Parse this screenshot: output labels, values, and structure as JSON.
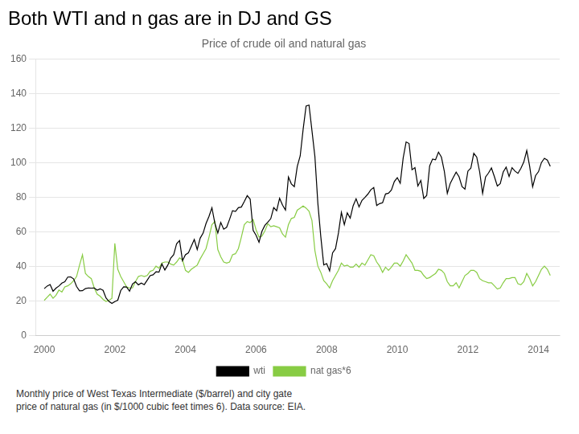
{
  "chart_data": {
    "type": "line",
    "title": "Both WTI and n gas are in DJ and GS",
    "subtitle": "Price of crude oil and natural gas",
    "annotations": [
      "Monthly price of West Texas Intermediate ($/barrel) and city gate\nprice of natural gas (in $/1000 cubic feet times 6).   Data source: EIA."
    ],
    "x": [
      2000,
      2000.083333,
      2000.166667,
      2000.25,
      2000.333333,
      2000.416667,
      2000.5,
      2000.583333,
      2000.666667,
      2000.75,
      2000.833333,
      2000.916667,
      2001,
      2001.083333,
      2001.166667,
      2001.25,
      2001.333333,
      2001.416667,
      2001.5,
      2001.583333,
      2001.666667,
      2001.75,
      2001.833333,
      2001.916667,
      2002,
      2002.083333,
      2002.166667,
      2002.25,
      2002.333333,
      2002.416667,
      2002.5,
      2002.583333,
      2002.666667,
      2002.75,
      2002.833333,
      2002.916667,
      2003,
      2003.083333,
      2003.166667,
      2003.25,
      2003.333333,
      2003.416667,
      2003.5,
      2003.583333,
      2003.666667,
      2003.75,
      2003.833333,
      2003.916667,
      2004,
      2004.083333,
      2004.166667,
      2004.25,
      2004.333333,
      2004.416667,
      2004.5,
      2004.583333,
      2004.666667,
      2004.75,
      2004.833333,
      2004.916667,
      2005,
      2005.083333,
      2005.166667,
      2005.25,
      2005.333333,
      2005.416667,
      2005.5,
      2005.583333,
      2005.666667,
      2005.75,
      2005.833333,
      2005.916667,
      2006,
      2006.083333,
      2006.166667,
      2006.25,
      2006.333333,
      2006.416667,
      2006.5,
      2006.583333,
      2006.666667,
      2006.75,
      2006.833333,
      2006.916667,
      2007,
      2007.083333,
      2007.166667,
      2007.25,
      2007.333333,
      2007.416667,
      2007.5,
      2007.583333,
      2007.666667,
      2007.75,
      2007.833333,
      2007.916667,
      2008,
      2008.083333,
      2008.166667,
      2008.25,
      2008.333333,
      2008.416667,
      2008.5,
      2008.583333,
      2008.666667,
      2008.75,
      2008.833333,
      2008.916667,
      2009,
      2009.083333,
      2009.166667,
      2009.25,
      2009.333333,
      2009.416667,
      2009.5,
      2009.583333,
      2009.666667,
      2009.75,
      2009.833333,
      2009.916667,
      2010,
      2010.083333,
      2010.166667,
      2010.25,
      2010.333333,
      2010.416667,
      2010.5,
      2010.583333,
      2010.666667,
      2010.75,
      2010.833333,
      2010.916667,
      2011,
      2011.083333,
      2011.166667,
      2011.25,
      2011.333333,
      2011.416667,
      2011.5,
      2011.583333,
      2011.666667,
      2011.75,
      2011.833333,
      2011.916667,
      2012,
      2012.083333,
      2012.166667,
      2012.25,
      2012.333333,
      2012.416667,
      2012.5,
      2012.583333,
      2012.666667,
      2012.75,
      2012.833333,
      2012.916667,
      2013,
      2013.083333,
      2013.166667,
      2013.25,
      2013.333333,
      2013.416667,
      2013.5,
      2013.583333,
      2013.666667,
      2013.75,
      2013.833333,
      2013.916667,
      2014,
      2014.083333,
      2014.166667,
      2014.25,
      2014.333333
    ],
    "series": [
      {
        "name": "wti",
        "color": "#000000",
        "values": [
          27.2,
          28.7,
          29.6,
          25.7,
          27.5,
          28.7,
          30.4,
          31.2,
          33.9,
          34.0,
          32.8,
          28.4,
          25.9,
          26.0,
          27.2,
          27.6,
          27.5,
          27.6,
          26.3,
          27.1,
          26.2,
          21.8,
          19.8,
          18.6,
          19.7,
          20.5,
          26.1,
          28.2,
          28.1,
          25.7,
          29.9,
          31.2,
          29.4,
          30.4,
          29.5,
          32.1,
          34.7,
          35.2,
          37.0,
          36.7,
          41.5,
          38.0,
          40.8,
          44.9,
          46.8,
          53.2,
          55.0,
          43.4,
          46.8,
          47.9,
          51.8,
          55.6,
          49.8,
          56.4,
          59.3,
          64.9,
          69.0,
          74.0,
          65.0,
          59.4,
          65.5,
          61.6,
          62.7,
          67.3,
          72.3,
          71.9,
          74.1,
          74.4,
          77.6,
          81.0,
          79.0,
          61.0,
          58.1,
          54.0,
          60.4,
          63.8,
          65.7,
          67.7,
          74.1,
          72.3,
          79.5,
          75.5,
          72.7,
          91.8,
          87.8,
          86.2,
          97.9,
          104.0,
          119.4,
          132.9,
          133.4,
          118.6,
          103.6,
          76.6,
          57.3,
          40.9,
          41.7,
          37.5,
          47.9,
          50.3,
          59.4,
          71.3,
          64.2,
          71.0,
          68.0,
          75.2,
          79.2,
          74.5,
          78.3,
          80.0,
          81.9,
          84.4,
          85.7,
          75.3,
          76.4,
          76.9,
          82.0,
          82.4,
          84.3,
          89.2,
          91.4,
          88.2,
          102.8,
          112.1,
          111.2,
          96.0,
          97.2,
          86.6,
          89.8,
          79.4,
          81.1,
          98.2,
          102.2,
          101.8,
          106.2,
          103.3,
          95.0,
          82.3,
          88.1,
          91.4,
          94.6,
          91.9,
          86.2,
          84.8,
          95.2,
          96.9,
          105.5,
          103.3,
          94.7,
          82.3,
          91.8,
          94.1,
          97.0,
          92.0,
          86.6,
          88.0,
          94.7,
          97.5,
          92.1,
          97.2,
          95.2,
          93.9,
          96.8,
          100.5,
          107.1,
          97.9,
          86.1,
          92.6,
          94.9,
          100.2,
          102.6,
          101.6,
          98.0
        ]
      },
      {
        "name": "nat gas*6",
        "color": "#88cc44",
        "values": [
          20.4,
          22.2,
          24.0,
          21.6,
          23.4,
          26.4,
          25.2,
          28.2,
          28.8,
          30.0,
          31.8,
          34.2,
          40.8,
          46.8,
          36.0,
          34.2,
          33.0,
          27.6,
          24.0,
          22.8,
          21.0,
          19.8,
          20.4,
          21.6,
          53.4,
          38.4,
          34.2,
          31.2,
          28.2,
          27.6,
          27.6,
          31.2,
          34.2,
          34.8,
          34.2,
          34.8,
          37.2,
          37.8,
          40.2,
          39.0,
          42.0,
          42.6,
          42.6,
          41.4,
          40.8,
          42.6,
          45.0,
          43.8,
          37.8,
          36.6,
          38.4,
          39.6,
          40.8,
          44.4,
          47.4,
          50.4,
          57.0,
          64.2,
          66.0,
          49.8,
          45.6,
          42.6,
          42.0,
          42.6,
          46.8,
          47.4,
          50.4,
          57.0,
          64.2,
          66.0,
          65.4,
          67.2,
          61.2,
          57.0,
          57.6,
          60.6,
          64.8,
          63.0,
          63.6,
          63.0,
          62.4,
          58.8,
          57.0,
          64.2,
          67.8,
          68.4,
          72.6,
          73.8,
          75.0,
          73.8,
          72.0,
          66.6,
          49.2,
          40.2,
          36.6,
          31.8,
          30.0,
          27.6,
          31.8,
          34.8,
          37.8,
          42.0,
          40.2,
          40.8,
          39.6,
          39.6,
          41.4,
          39.6,
          42.0,
          40.8,
          43.8,
          46.8,
          46.2,
          42.6,
          40.2,
          36.6,
          39.6,
          37.8,
          39.6,
          42.0,
          42.0,
          40.2,
          43.2,
          46.8,
          44.4,
          42.0,
          37.8,
          37.8,
          37.2,
          34.8,
          33.0,
          33.6,
          34.8,
          36.0,
          38.4,
          37.8,
          36.0,
          31.2,
          28.8,
          28.8,
          30.6,
          27.6,
          31.2,
          34.8,
          36.0,
          37.8,
          37.8,
          36.6,
          33.0,
          31.8,
          31.2,
          30.6,
          30.6,
          28.8,
          27.0,
          27.6,
          30.6,
          33.0,
          33.0,
          33.6,
          33.6,
          30.0,
          29.4,
          31.2,
          36.0,
          33.0,
          28.8,
          31.2,
          34.8,
          38.4,
          40.2,
          38.4,
          34.8
        ]
      }
    ],
    "xlim": [
      1999.75,
      2014.6
    ],
    "xticks": [
      2000,
      2002,
      2004,
      2006,
      2008,
      2010,
      2012,
      2014
    ],
    "ylim": [
      0,
      160
    ],
    "yticks": [
      0,
      20,
      40,
      60,
      80,
      100,
      120,
      140,
      160
    ],
    "grid": "y",
    "legend": "bottom"
  }
}
